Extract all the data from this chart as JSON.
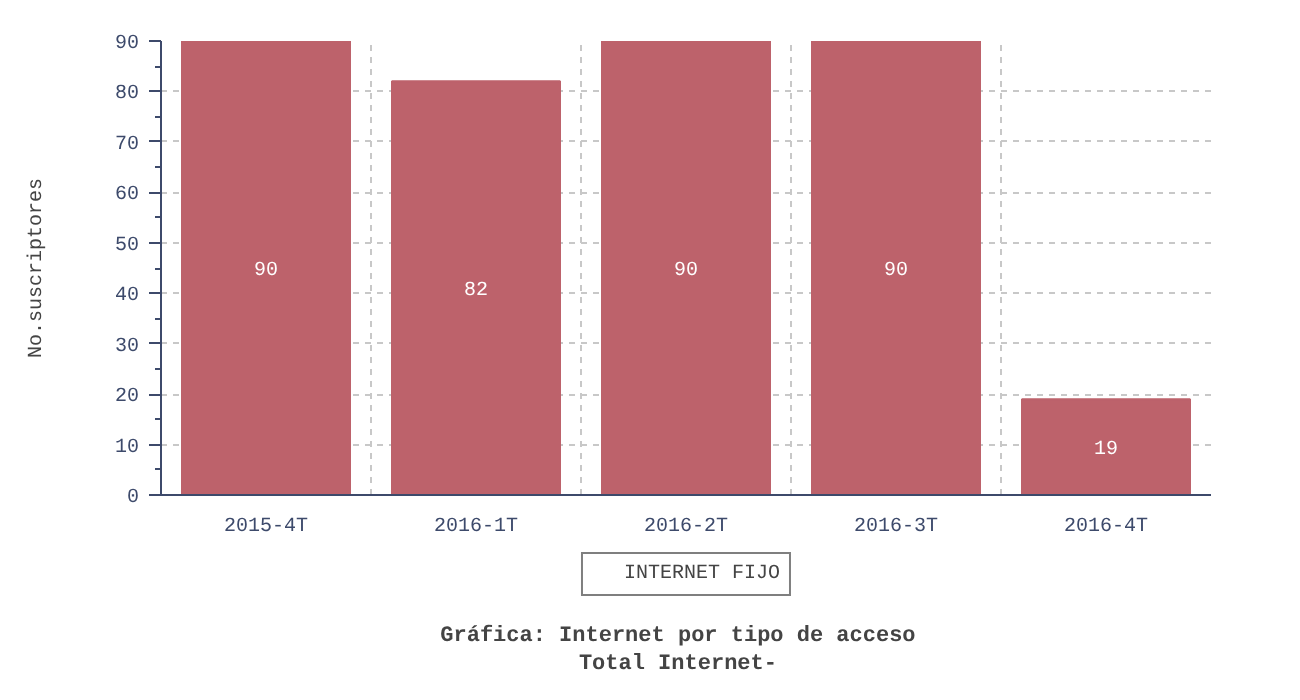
{
  "chart_data": {
    "type": "bar",
    "title": "Gráfica: Internet por tipo de acceso",
    "subtitle": "Total Internet-",
    "ylabel": "No.suscriptores",
    "categories": [
      "2015-4T",
      "2016-1T",
      "2016-2T",
      "2016-3T",
      "2016-4T"
    ],
    "series": [
      {
        "name": "INTERNET FIJO",
        "color": "#bd626b",
        "values": [
          90,
          82,
          90,
          90,
          19
        ]
      }
    ],
    "ylim": [
      0,
      90
    ],
    "yticks": [
      0,
      10,
      20,
      30,
      40,
      50,
      60,
      70,
      80,
      90
    ],
    "grid": true,
    "legend": "bottom",
    "data_labels": true
  }
}
